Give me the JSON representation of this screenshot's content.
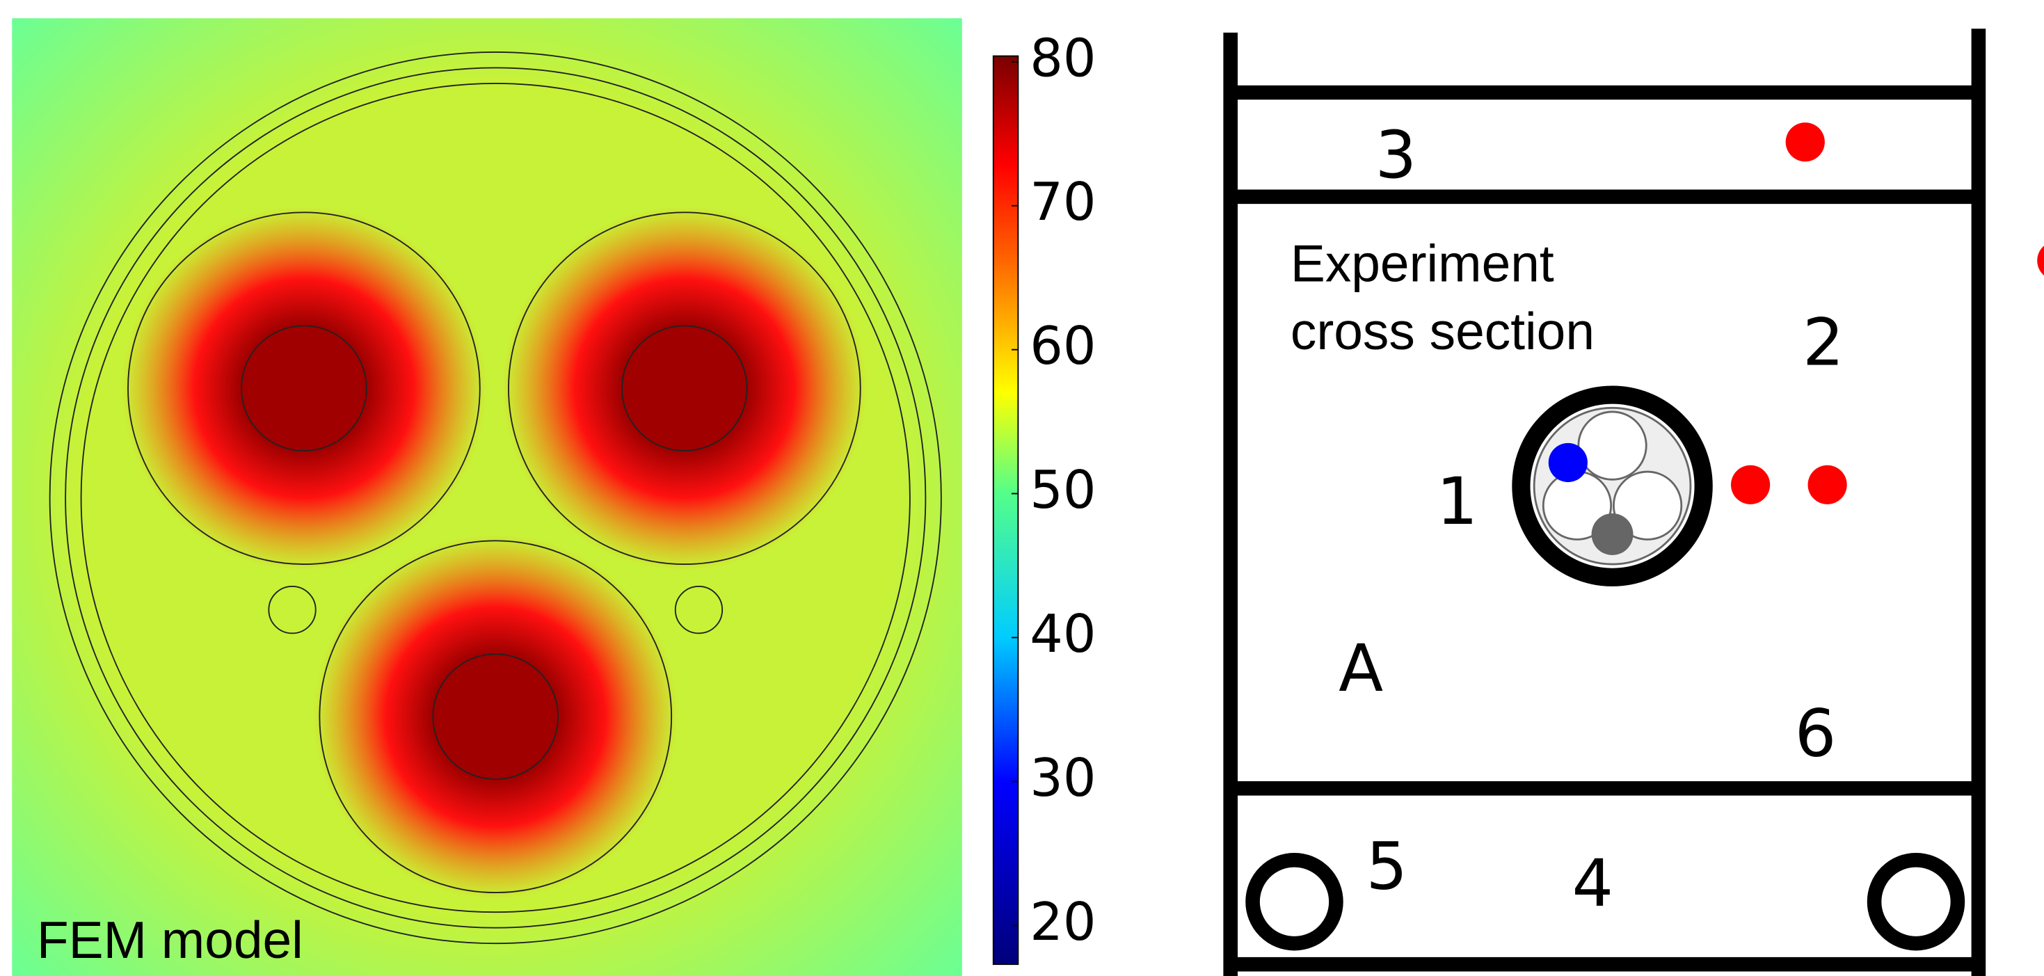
{
  "fem": {
    "label": "FEM model"
  },
  "colorbar": {
    "range": [
      17.3,
      80.4
    ],
    "ticks": [
      20,
      30,
      40,
      50,
      60,
      70,
      80
    ]
  },
  "experiment": {
    "title": [
      "Experiment",
      "cross section"
    ],
    "labels": [
      "3",
      "2",
      "1",
      "A",
      "6",
      "5",
      "4"
    ]
  }
}
